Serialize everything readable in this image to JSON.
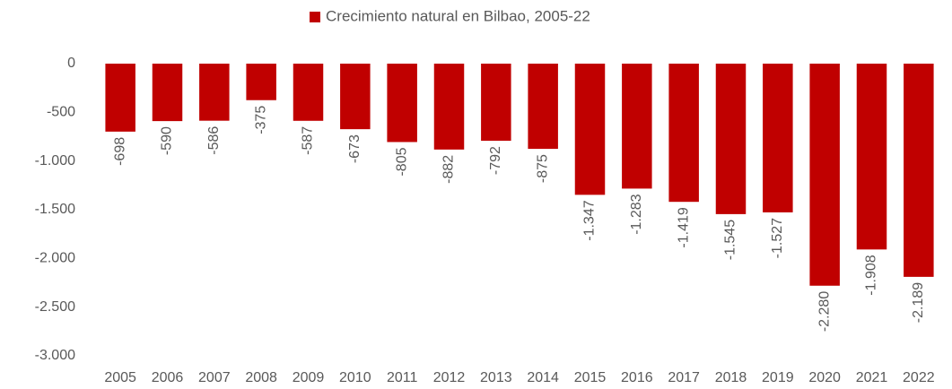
{
  "chart_data": {
    "type": "bar",
    "categories": [
      "2005",
      "2006",
      "2007",
      "2008",
      "2009",
      "2010",
      "2011",
      "2012",
      "2013",
      "2014",
      "2015",
      "2016",
      "2017",
      "2018",
      "2019",
      "2020",
      "2021",
      "2022"
    ],
    "series": [
      {
        "name": "Crecimiento natural en Bilbao, 2005-22",
        "color": "#c00000",
        "values": [
          -698,
          -590,
          -586,
          -375,
          -587,
          -673,
          -805,
          -882,
          -792,
          -875,
          -1347,
          -1283,
          -1419,
          -1545,
          -1527,
          -2280,
          -1908,
          -2189
        ],
        "value_labels": [
          "-698",
          "-590",
          "-586",
          "-375",
          "-587",
          "-673",
          "-805",
          "-882",
          "-792",
          "-875",
          "-1.347",
          "-1.283",
          "-1.419",
          "-1.545",
          "-1.527",
          "-2.280",
          "-1.908",
          "-2.189"
        ]
      }
    ],
    "ylim": [
      -3000,
      0
    ],
    "yticks": [
      0,
      -500,
      {
        "value": -1000,
        "label": "-1.000"
      },
      {
        "value": -1500,
        "label": "-1.500"
      },
      {
        "value": -2000,
        "label": "-2.000"
      },
      {
        "value": -2500,
        "label": "-2.500"
      },
      {
        "value": -3000,
        "label": "-3.000"
      }
    ],
    "legend": "top",
    "grid": false
  }
}
